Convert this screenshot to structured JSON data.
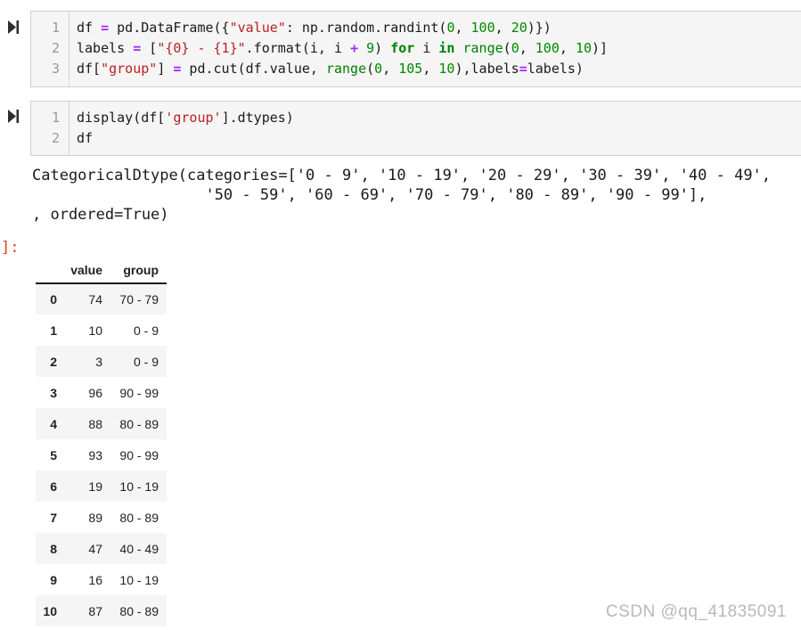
{
  "colors": {
    "operator": "#AA22FF",
    "string": "#BA2121",
    "keyword": "#008000",
    "number": "#008800",
    "builtin": "#008000",
    "prompt": "#D84315",
    "cell_background": "#f5f5f5",
    "row_stripe": "#f5f5f5"
  },
  "cells": [
    {
      "line_numbers": [
        "1",
        "2",
        "3"
      ],
      "code_lines": [
        [
          [
            "df ",
            "t"
          ],
          [
            "=",
            "o"
          ],
          [
            " pd.DataFrame({",
            "t"
          ],
          [
            "\"value\"",
            "s"
          ],
          [
            ": np.random.randint(",
            "t"
          ],
          [
            "0",
            "n"
          ],
          [
            ", ",
            "t"
          ],
          [
            "100",
            "n"
          ],
          [
            ", ",
            "t"
          ],
          [
            "20",
            "n"
          ],
          [
            ")})",
            "t"
          ]
        ],
        [
          [
            "labels ",
            "t"
          ],
          [
            "=",
            "o"
          ],
          [
            " [",
            "t"
          ],
          [
            "\"{0} - {1}\"",
            "s"
          ],
          [
            ".format(i, i ",
            "t"
          ],
          [
            "+",
            "o"
          ],
          [
            " ",
            "t"
          ],
          [
            "9",
            "n"
          ],
          [
            ") ",
            "t"
          ],
          [
            "for",
            "k"
          ],
          [
            " i ",
            "t"
          ],
          [
            "in",
            "k"
          ],
          [
            " ",
            "t"
          ],
          [
            "range",
            "b"
          ],
          [
            "(",
            "t"
          ],
          [
            "0",
            "n"
          ],
          [
            ", ",
            "t"
          ],
          [
            "100",
            "n"
          ],
          [
            ", ",
            "t"
          ],
          [
            "10",
            "n"
          ],
          [
            ")]",
            "t"
          ]
        ],
        [
          [
            "df[",
            "t"
          ],
          [
            "\"group\"",
            "s"
          ],
          [
            "] ",
            "t"
          ],
          [
            "=",
            "o"
          ],
          [
            " pd.cut(df.value, ",
            "t"
          ],
          [
            "range",
            "b"
          ],
          [
            "(",
            "t"
          ],
          [
            "0",
            "n"
          ],
          [
            ", ",
            "t"
          ],
          [
            "105",
            "n"
          ],
          [
            ", ",
            "t"
          ],
          [
            "10",
            "n"
          ],
          [
            "),labels",
            "t"
          ],
          [
            "=",
            "o"
          ],
          [
            "labels)",
            "t"
          ]
        ]
      ]
    },
    {
      "line_numbers": [
        "1",
        "2"
      ],
      "code_lines": [
        [
          [
            "display(df[",
            "t"
          ],
          [
            "'group'",
            "s"
          ],
          [
            "].dtypes)",
            "t"
          ]
        ],
        [
          [
            "df",
            "t"
          ]
        ]
      ]
    }
  ],
  "output": {
    "prompt": "]:",
    "dtype_text": "CategoricalDtype(categories=['0 - 9', '10 - 19', '20 - 29', '30 - 39', '40 - 49',\n                   '50 - 59', '60 - 69', '70 - 79', '80 - 89', '90 - 99'],\n, ordered=True)"
  },
  "table": {
    "columns": [
      "value",
      "group"
    ],
    "rows": [
      {
        "index": "0",
        "value": "74",
        "group": "70 - 79"
      },
      {
        "index": "1",
        "value": "10",
        "group": "0 - 9"
      },
      {
        "index": "2",
        "value": "3",
        "group": "0 - 9"
      },
      {
        "index": "3",
        "value": "96",
        "group": "90 - 99"
      },
      {
        "index": "4",
        "value": "88",
        "group": "80 - 89"
      },
      {
        "index": "5",
        "value": "93",
        "group": "90 - 99"
      },
      {
        "index": "6",
        "value": "19",
        "group": "10 - 19"
      },
      {
        "index": "7",
        "value": "89",
        "group": "80 - 89"
      },
      {
        "index": "8",
        "value": "47",
        "group": "40 - 49"
      },
      {
        "index": "9",
        "value": "16",
        "group": "10 - 19"
      },
      {
        "index": "10",
        "value": "87",
        "group": "80 - 89"
      }
    ]
  },
  "watermark": "CSDN @qq_41835091"
}
